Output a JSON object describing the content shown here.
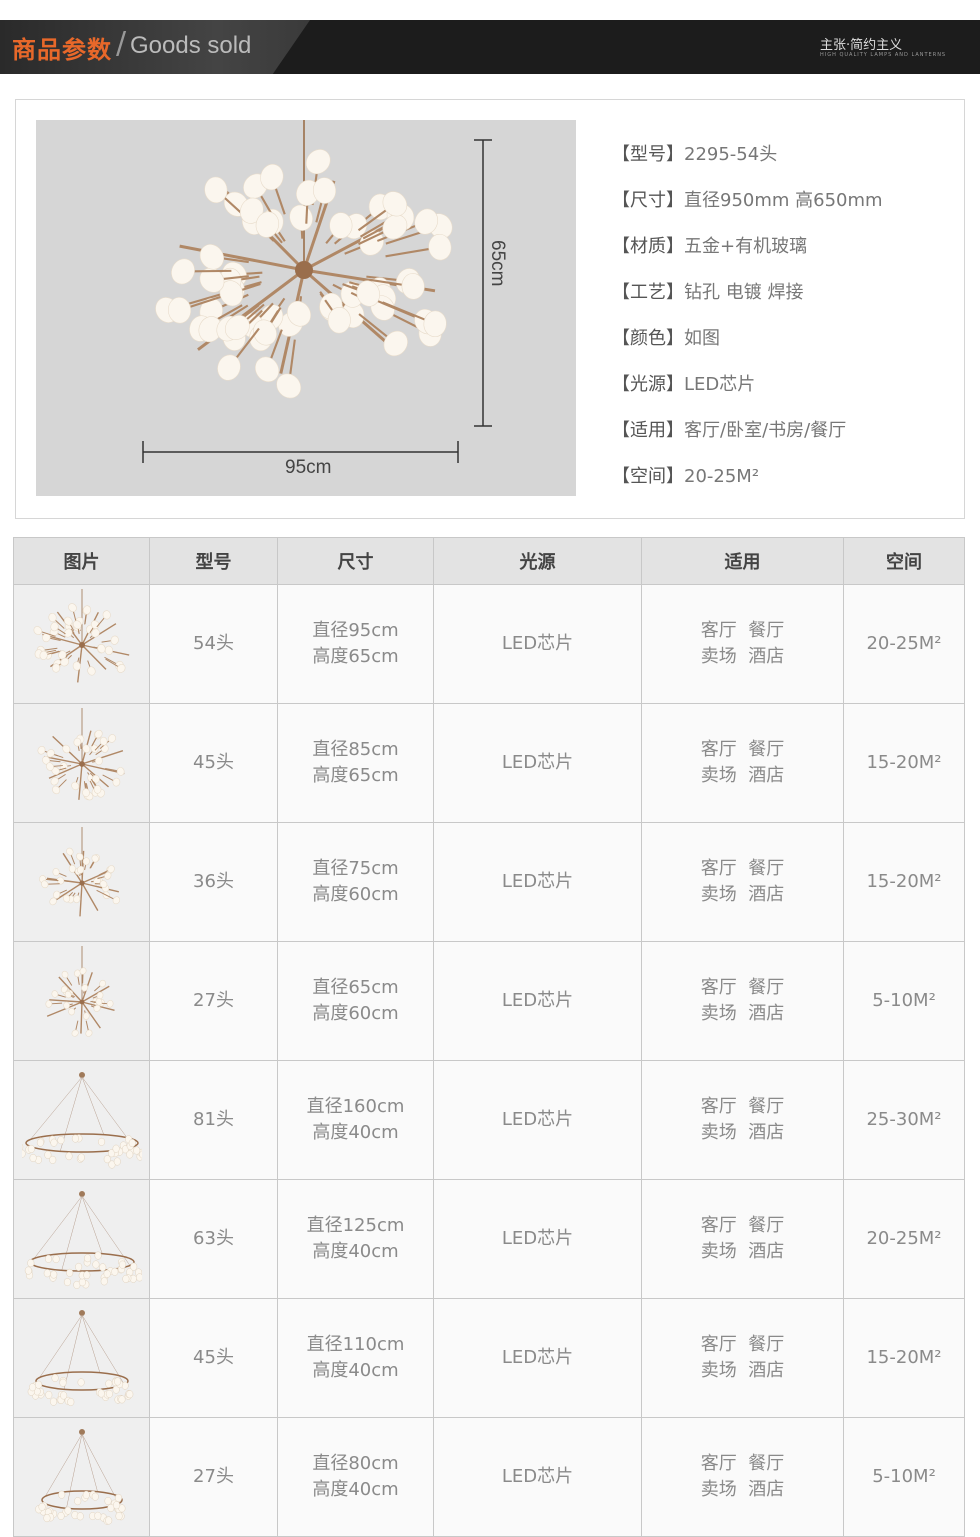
{
  "header": {
    "title_cn": "商品参数",
    "title_en": "Goods sold",
    "brand": "主张·简约主义",
    "brand_sub": "HIGH QUALITY LAMPS AND LANTERNS"
  },
  "product_image": {
    "height_label": "65cm",
    "width_label": "95cm"
  },
  "specs": [
    {
      "key": "【型号】",
      "value": "2295-54头"
    },
    {
      "key": "【尺寸】",
      "value": "直径950mm 高650mm"
    },
    {
      "key": "【材质】",
      "value": "五金+有机玻璃"
    },
    {
      "key": "【工艺】",
      "value": "钻孔 电镀 焊接"
    },
    {
      "key": "【颜色】",
      "value": "如图"
    },
    {
      "key": "【光源】",
      "value": "LED芯片"
    },
    {
      "key": "【适用】",
      "value": "客厅/卧室/书房/餐厅"
    },
    {
      "key": "【空间】",
      "value": "20-25M²"
    }
  ],
  "table": {
    "headers": [
      "图片",
      "型号",
      "尺寸",
      "光源",
      "适用",
      "空间"
    ],
    "rows": [
      {
        "style": "branch",
        "model": "54头",
        "size1": "直径95cm",
        "size2": "高度65cm",
        "light": "LED芯片",
        "use1": "客厅  餐厅",
        "use2": "卖场  酒店",
        "space": "20-25M²"
      },
      {
        "style": "branch",
        "model": "45头",
        "size1": "直径85cm",
        "size2": "高度65cm",
        "light": "LED芯片",
        "use1": "客厅  餐厅",
        "use2": "卖场  酒店",
        "space": "15-20M²"
      },
      {
        "style": "branch",
        "model": "36头",
        "size1": "直径75cm",
        "size2": "高度60cm",
        "light": "LED芯片",
        "use1": "客厅  餐厅",
        "use2": "卖场  酒店",
        "space": "15-20M²"
      },
      {
        "style": "branch",
        "model": "27头",
        "size1": "直径65cm",
        "size2": "高度60cm",
        "light": "LED芯片",
        "use1": "客厅  餐厅",
        "use2": "卖场  酒店",
        "space": "5-10M²"
      },
      {
        "style": "ring",
        "model": "81头",
        "size1": "直径160cm",
        "size2": "高度40cm",
        "light": "LED芯片",
        "use1": "客厅  餐厅",
        "use2": "卖场  酒店",
        "space": "25-30M²"
      },
      {
        "style": "ring",
        "model": "63头",
        "size1": "直径125cm",
        "size2": "高度40cm",
        "light": "LED芯片",
        "use1": "客厅  餐厅",
        "use2": "卖场  酒店",
        "space": "20-25M²"
      },
      {
        "style": "ring",
        "model": "45头",
        "size1": "直径110cm",
        "size2": "高度40cm",
        "light": "LED芯片",
        "use1": "客厅  餐厅",
        "use2": "卖场  酒店",
        "space": "15-20M²"
      },
      {
        "style": "ring",
        "model": "27头",
        "size1": "直径80cm",
        "size2": "高度40cm",
        "light": "LED芯片",
        "use1": "客厅  餐厅",
        "use2": "卖场  酒店",
        "space": "5-10M²"
      }
    ]
  }
}
